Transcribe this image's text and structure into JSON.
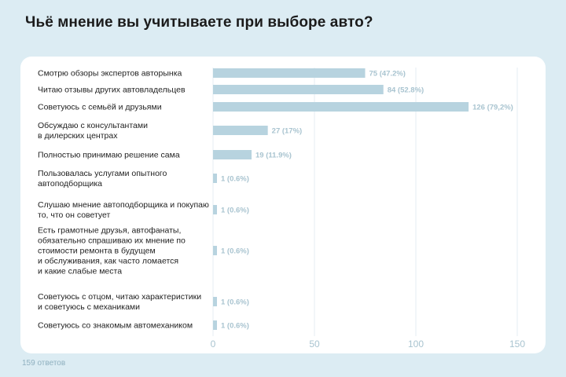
{
  "colors": {
    "bar": "#b7d3df",
    "grid": "#e5eef3",
    "value_text": "#a9c4d0",
    "background": "#dcecf3"
  },
  "footer": {
    "responses": "159 ответов"
  },
  "chart_data": {
    "type": "bar",
    "orientation": "horizontal",
    "title": "Чьё мнение вы учитываете при выборе авто?",
    "categories": [
      "Смотрю обзоры экспертов авторынка",
      "Читаю отзывы других автовладельцев",
      "Советуюсь с семьёй и друзьями",
      "Обсуждаю с консультантами\nв дилерских центрах",
      "Полностью принимаю решение сама",
      "Пользовалась услугами опытного\nавтоподборщика",
      "Слушаю мнение автоподборщика и покупаю\nто, что он советует",
      "Есть грамотные друзья, автофанаты,\nобязательно спрашиваю их мнение по\nстоимости ремонта в будущем\nи обслуживания, как часто ломается\nи какие слабые места",
      "Советуюсь с отцом, читаю характеристики\nи советуюсь с механиками",
      "Советуюсь со знакомым автомехаником"
    ],
    "values": [
      75,
      84,
      126,
      27,
      19,
      1,
      1,
      1,
      1,
      1
    ],
    "value_labels": [
      "75 (47.2%)",
      "84 (52.8%)",
      "126 (79,2%)",
      "27 (17%)",
      "19 (11.9%)",
      "1 (0.6%)",
      "1 (0.6%)",
      "1 (0.6%)",
      "1 (0.6%)",
      "1 (0.6%)"
    ],
    "xlim": [
      0,
      150
    ],
    "xticks": [
      0,
      50,
      100,
      150
    ],
    "grid": true
  }
}
